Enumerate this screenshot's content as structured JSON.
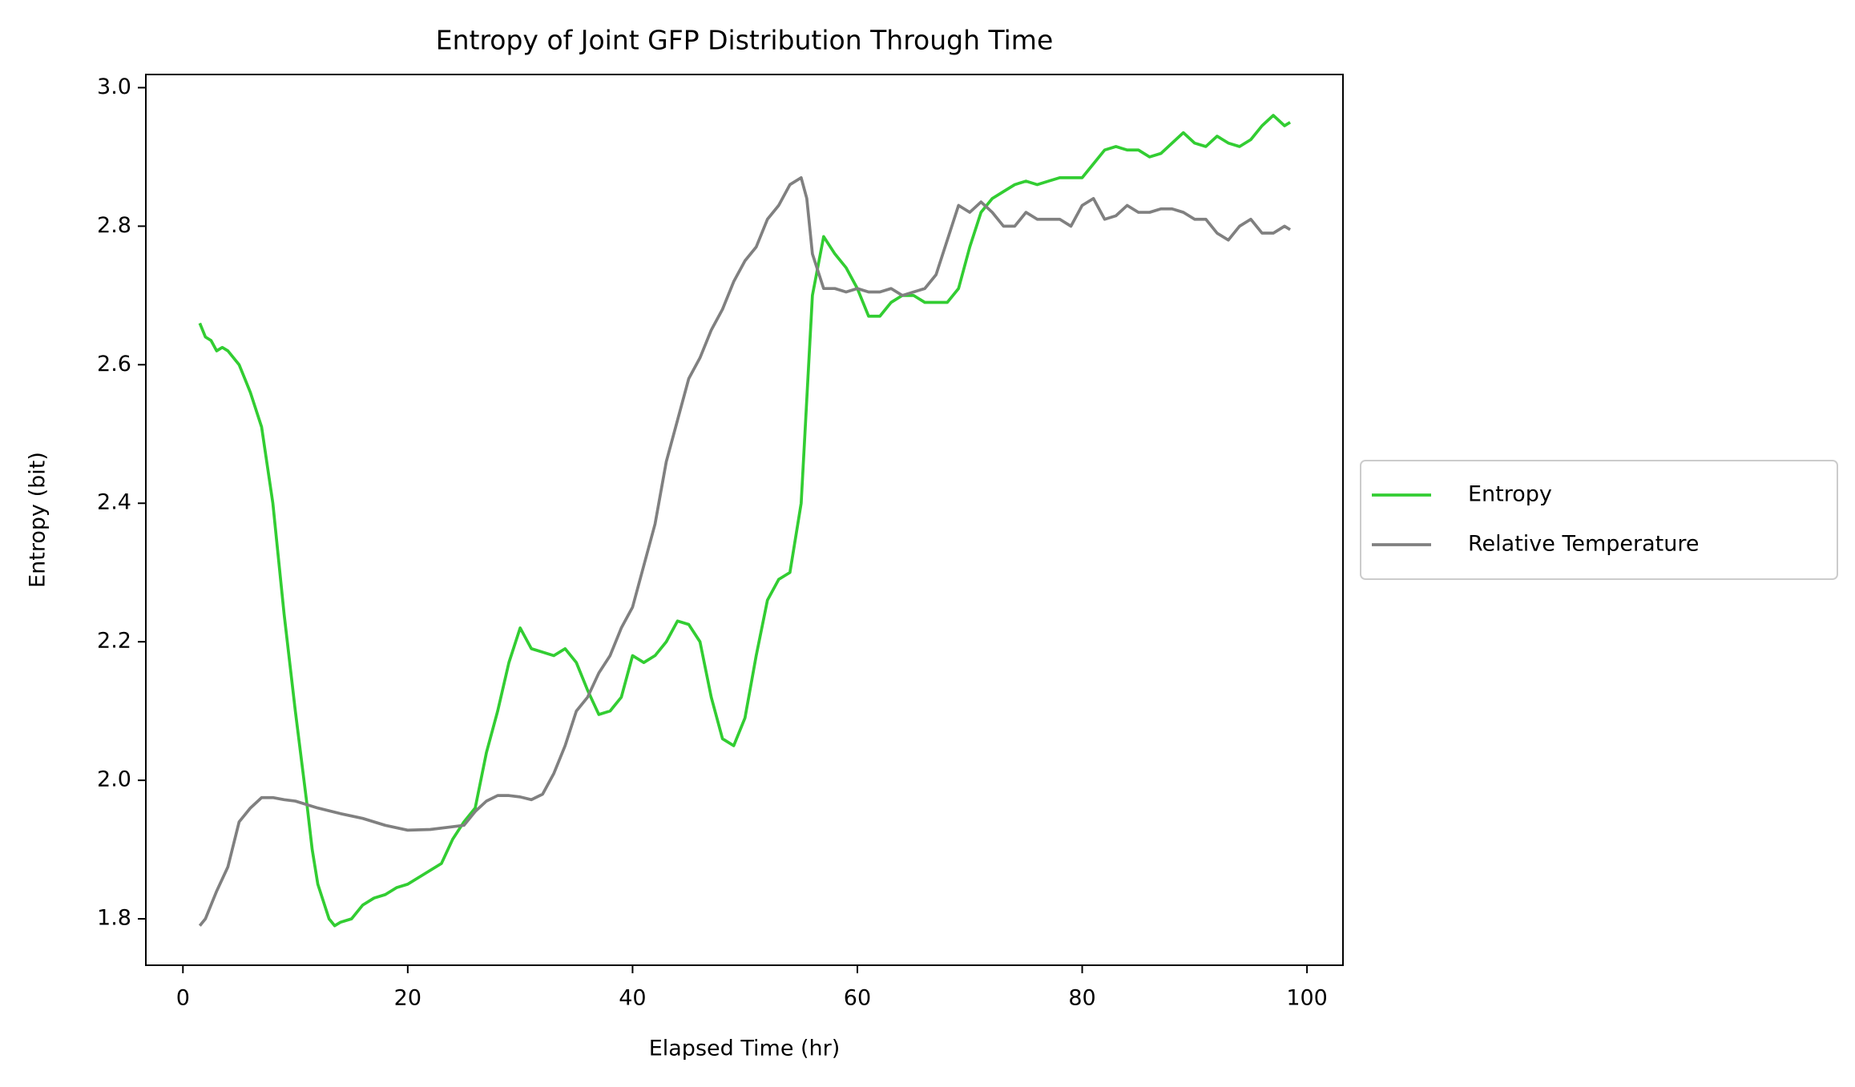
{
  "chart_data": {
    "type": "line",
    "title": "Entropy of Joint GFP Distribution Through Time",
    "xlabel": "Elapsed Time (hr)",
    "ylabel": "Entropy (bit)",
    "xlim": [
      -3.3,
      103.2
    ],
    "ylim": [
      1.733,
      3.019
    ],
    "xticks": [
      0,
      20,
      40,
      60,
      80,
      100
    ],
    "yticks": [
      1.8,
      {
        "value": 2,
        "label": "2.0"
      },
      2.2,
      2.4,
      2.6,
      2.8,
      {
        "value": 3,
        "label": "3.0"
      }
    ],
    "grid": false,
    "legend": "outside right",
    "series": [
      {
        "name": "Entropy",
        "color": "#32cd32",
        "x": [
          1.5,
          2,
          2.5,
          3,
          3.5,
          4,
          5,
          5.5,
          6,
          7,
          8,
          9,
          10,
          11,
          11.5,
          12,
          13,
          13.5,
          14,
          15,
          16,
          17,
          18,
          19,
          20,
          21,
          22,
          23,
          24,
          25,
          26,
          27,
          28,
          29,
          30,
          31,
          32,
          33,
          34,
          35,
          36,
          37,
          38,
          39,
          40,
          41,
          42,
          43,
          44,
          45,
          46,
          47,
          48,
          49,
          50,
          51,
          52,
          53,
          54,
          55,
          56,
          57,
          58,
          59,
          60,
          61,
          62,
          63,
          64,
          65,
          66,
          67,
          68,
          69,
          70,
          71,
          72,
          73,
          74,
          75,
          76,
          77,
          78,
          79,
          80,
          81,
          82,
          83,
          84,
          85,
          86,
          87,
          88,
          89,
          90,
          91,
          92,
          93,
          94,
          95,
          96,
          97,
          98,
          98.5
        ],
        "values": [
          2.66,
          2.64,
          2.635,
          2.62,
          2.625,
          2.62,
          2.6,
          2.58,
          2.56,
          2.51,
          2.4,
          2.24,
          2.1,
          1.97,
          1.9,
          1.85,
          1.8,
          1.79,
          1.795,
          1.8,
          1.82,
          1.83,
          1.835,
          1.845,
          1.85,
          1.86,
          1.87,
          1.88,
          1.915,
          1.94,
          1.96,
          2.04,
          2.1,
          2.17,
          2.22,
          2.19,
          2.185,
          2.18,
          2.19,
          2.17,
          2.13,
          2.095,
          2.1,
          2.12,
          2.18,
          2.17,
          2.18,
          2.2,
          2.23,
          2.225,
          2.2,
          2.12,
          2.06,
          2.05,
          2.09,
          2.18,
          2.26,
          2.29,
          2.3,
          2.4,
          2.7,
          2.785,
          2.76,
          2.74,
          2.71,
          2.67,
          2.67,
          2.69,
          2.7,
          2.7,
          2.69,
          2.69,
          2.69,
          2.71,
          2.77,
          2.82,
          2.84,
          2.85,
          2.86,
          2.865,
          2.86,
          2.865,
          2.87,
          2.87,
          2.87,
          2.89,
          2.91,
          2.915,
          2.91,
          2.91,
          2.9,
          2.905,
          2.92,
          2.935,
          2.92,
          2.915,
          2.93,
          2.92,
          2.915,
          2.925,
          2.945,
          2.96,
          2.945,
          2.95
        ]
      },
      {
        "name": "Relative Temperature",
        "color": "#808080",
        "x": [
          1.5,
          2,
          3,
          4,
          5,
          6,
          7,
          8,
          9,
          10,
          12,
          14,
          16,
          18,
          20,
          22,
          24,
          25,
          26,
          27,
          28,
          29,
          30,
          31,
          32,
          33,
          34,
          35,
          36,
          37,
          38,
          39,
          40,
          41,
          42,
          43,
          44,
          45,
          46,
          47,
          48,
          49,
          50,
          51,
          52,
          53,
          54,
          55,
          55.5,
          56,
          57,
          58,
          59,
          60,
          61,
          62,
          63,
          64,
          65,
          66,
          67,
          68,
          69,
          70,
          71,
          72,
          73,
          74,
          75,
          76,
          77,
          78,
          79,
          80,
          81,
          82,
          83,
          84,
          85,
          86,
          87,
          88,
          89,
          90,
          91,
          92,
          93,
          94,
          95,
          96,
          97,
          98,
          98.5
        ],
        "values": [
          1.79,
          1.8,
          1.84,
          1.875,
          1.94,
          1.96,
          1.975,
          1.975,
          1.972,
          1.97,
          1.96,
          1.952,
          1.945,
          1.935,
          1.928,
          1.929,
          1.933,
          1.935,
          1.955,
          1.97,
          1.978,
          1.978,
          1.976,
          1.972,
          1.98,
          2.01,
          2.05,
          2.1,
          2.12,
          2.155,
          2.18,
          2.22,
          2.25,
          2.31,
          2.37,
          2.46,
          2.52,
          2.58,
          2.61,
          2.65,
          2.68,
          2.72,
          2.75,
          2.77,
          2.81,
          2.83,
          2.86,
          2.87,
          2.84,
          2.76,
          2.71,
          2.71,
          2.705,
          2.71,
          2.705,
          2.705,
          2.71,
          2.7,
          2.705,
          2.71,
          2.73,
          2.78,
          2.83,
          2.82,
          2.835,
          2.82,
          2.8,
          2.8,
          2.82,
          2.81,
          2.81,
          2.81,
          2.8,
          2.83,
          2.84,
          2.81,
          2.815,
          2.83,
          2.82,
          2.82,
          2.825,
          2.825,
          2.82,
          2.81,
          2.81,
          2.79,
          2.78,
          2.8,
          2.81,
          2.79,
          2.79,
          2.8,
          2.795
        ]
      }
    ]
  }
}
